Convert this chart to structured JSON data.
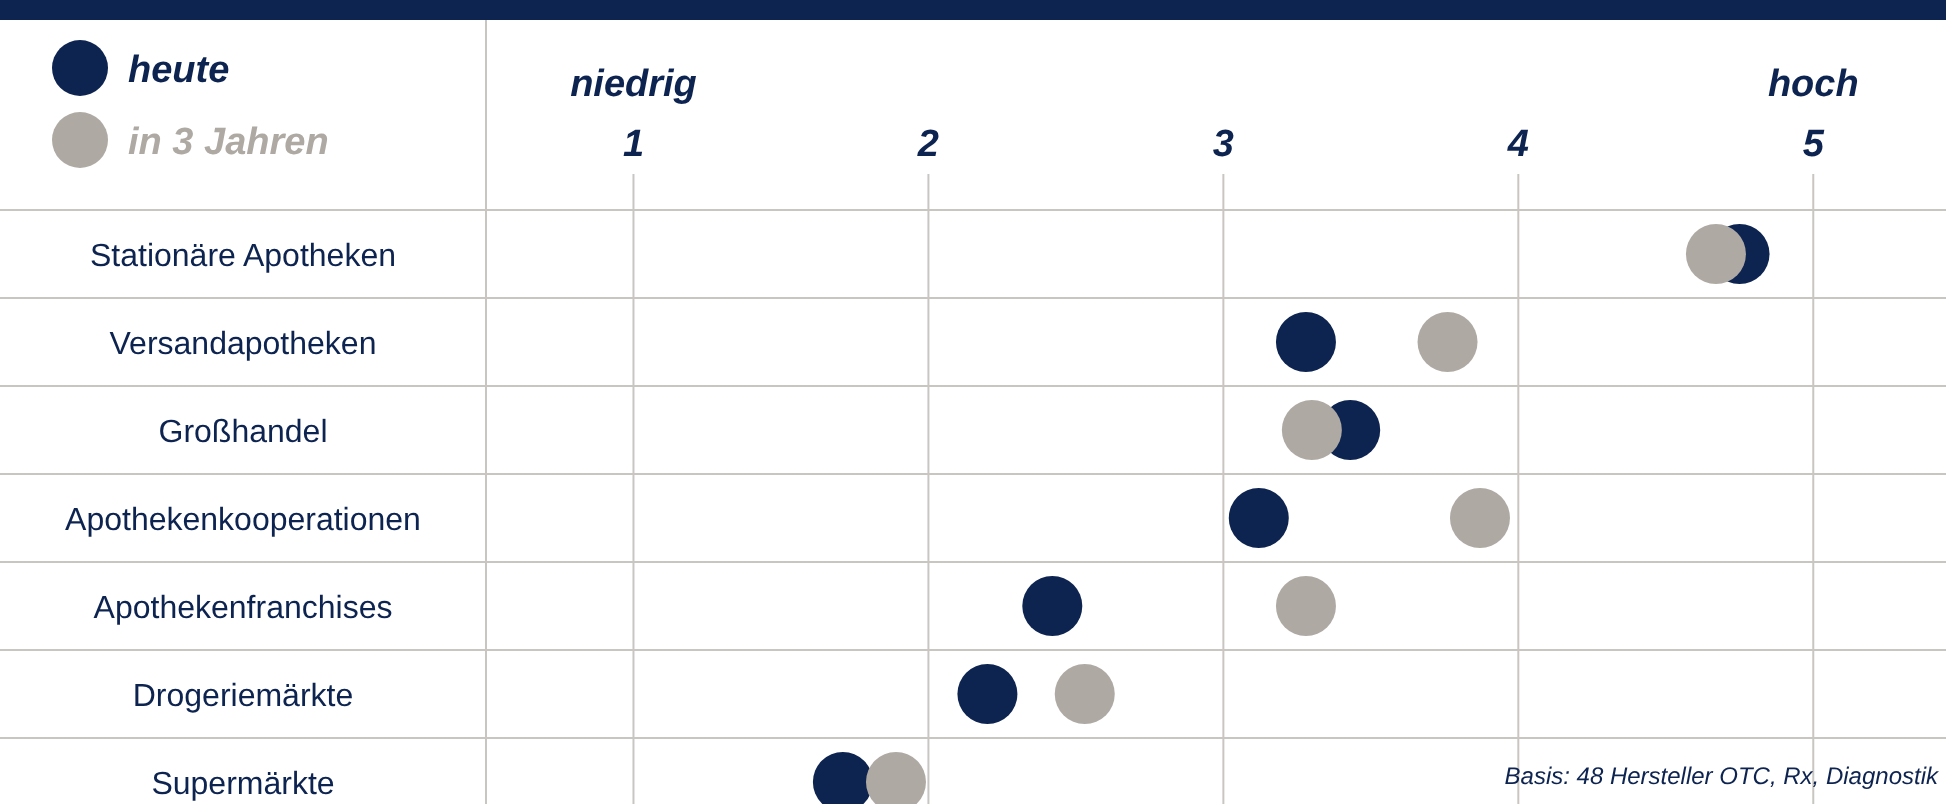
{
  "chart_data": {
    "type": "scatter",
    "orientation": "horizontal",
    "categories": [
      "Stationäre Apotheken",
      "Versandapotheken",
      "Großhandel",
      "Apothekenkooperationen",
      "Apothekenfranchises",
      "Drogeriemärkte",
      "Supermärkte"
    ],
    "series": [
      {
        "name": "heute",
        "color": "#0d2350",
        "values": [
          4.75,
          3.28,
          3.43,
          3.12,
          2.42,
          2.2,
          1.71
        ]
      },
      {
        "name": "in 3 Jahren",
        "color": "#aea9a3",
        "values": [
          4.67,
          3.76,
          3.3,
          3.87,
          3.28,
          2.53,
          1.89
        ]
      }
    ],
    "xlim": [
      0.5,
      5.45
    ],
    "xticks": [
      1,
      2,
      3,
      4,
      5
    ],
    "grid": true,
    "legend": "top left",
    "marker": "circle",
    "annotations": [
      "niedrig",
      "hoch",
      "Basis: 48 Hersteller OTC, Rx, Diagnostik"
    ]
  }
}
